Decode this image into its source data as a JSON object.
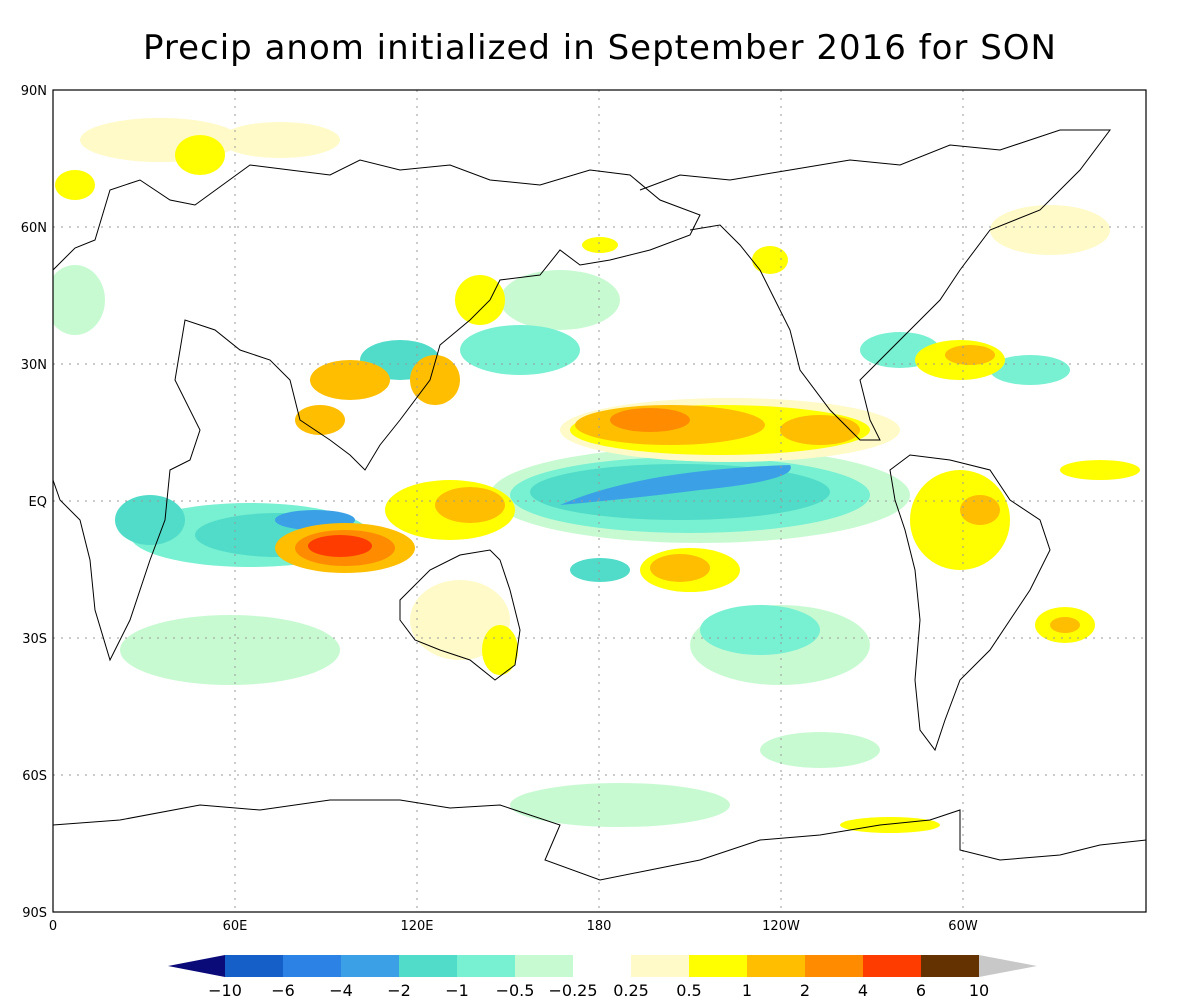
{
  "title": "Precip anom initialized in September 2016 for SON",
  "axes": {
    "lat_ticks": [
      "90N",
      "60N",
      "30N",
      "EQ",
      "30S",
      "60S",
      "90S"
    ],
    "lon_ticks": [
      "0",
      "60E",
      "120E",
      "180",
      "120W",
      "60W"
    ]
  },
  "colorbar": {
    "labels": [
      "−10",
      "−6",
      "−4",
      "−2",
      "−1",
      "−0.5",
      "−0.25",
      "0.25",
      "0.5",
      "1",
      "2",
      "4",
      "6",
      "10"
    ],
    "colors": [
      "#0a0a78",
      "#1560c8",
      "#2d82e6",
      "#3ca0e6",
      "#50dcc8",
      "#78f0d2",
      "#c8fad2",
      "#ffffff",
      "#fffac8",
      "#ffff00",
      "#ffbe00",
      "#ff8c00",
      "#ff3c00",
      "#643200",
      "#c8c8c8"
    ]
  },
  "colors": {
    "coast": "#000000",
    "grid": "#999999"
  },
  "anomaly_features": [
    {
      "region": "equatorial-central-pacific",
      "sign": "negative",
      "level": "-2"
    },
    {
      "region": "north-tropical-pacific",
      "sign": "positive",
      "level": "2"
    },
    {
      "region": "eastern-indian-ocean-sumatra",
      "sign": "positive",
      "level": "6"
    },
    {
      "region": "maritime-continent",
      "sign": "positive",
      "level": "2"
    },
    {
      "region": "south-pacific-convergence",
      "sign": "positive",
      "level": "2"
    },
    {
      "region": "tropical-south-america",
      "sign": "positive",
      "level": "2"
    },
    {
      "region": "southern-indian-ocean",
      "sign": "negative",
      "level": "-2"
    },
    {
      "region": "southeast-atlantic",
      "sign": "positive",
      "level": "2"
    }
  ]
}
